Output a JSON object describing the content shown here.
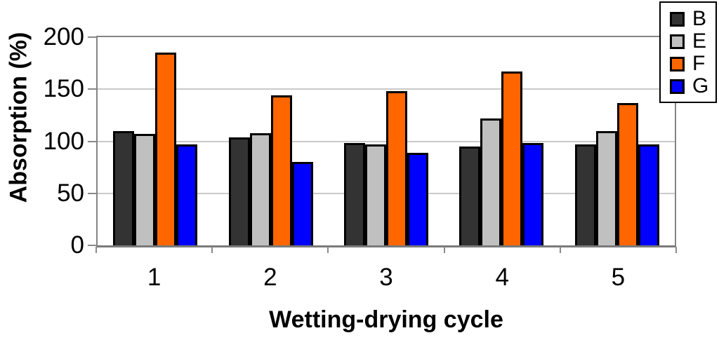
{
  "chart_data": {
    "type": "bar",
    "title": "",
    "xlabel": "Wetting-drying cycle",
    "ylabel": "Absorption (%)",
    "categories": [
      "1",
      "2",
      "3",
      "4",
      "5"
    ],
    "series": [
      {
        "name": "B",
        "color": "#333333",
        "values": [
          110,
          104,
          98,
          95,
          97
        ]
      },
      {
        "name": "E",
        "color": "#c0c0c0",
        "values": [
          107,
          108,
          97,
          122,
          110
        ]
      },
      {
        "name": "F",
        "color": "#ff6600",
        "values": [
          185,
          144,
          148,
          167,
          137
        ]
      },
      {
        "name": "G",
        "color": "#0000ff",
        "values": [
          97,
          80,
          89,
          98,
          97
        ]
      }
    ],
    "ylim": [
      0,
      200
    ],
    "yticks": [
      0,
      50,
      100,
      150,
      200
    ],
    "grid": true,
    "legend_position": "top-right",
    "bar_border_color": "#000000",
    "frame_color": "#848484",
    "gridline_color": "#c9c9c9"
  }
}
